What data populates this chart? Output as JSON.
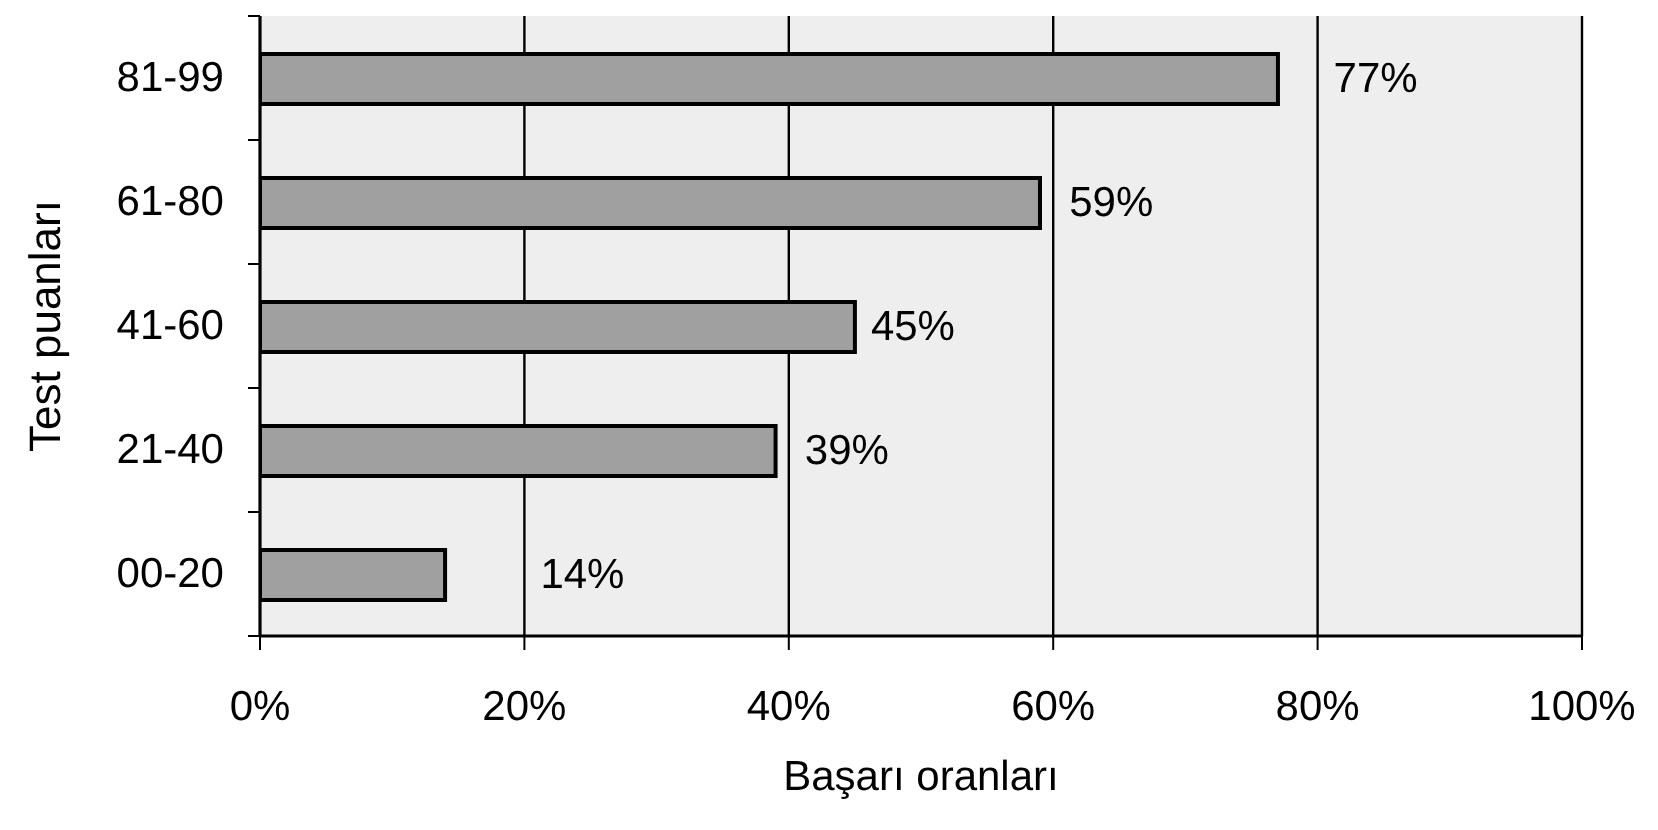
{
  "chart_data": {
    "type": "bar",
    "orientation": "horizontal",
    "xlabel": "Başarı oranları",
    "ylabel": "Test puanları",
    "categories": [
      "81-99",
      "61-80",
      "41-60",
      "21-40",
      "00-20"
    ],
    "values": [
      77,
      59,
      45,
      39,
      14
    ],
    "value_labels": [
      "77%",
      "59%",
      "45%",
      "39%",
      "14%"
    ],
    "color": "#a0a0a0",
    "xlim": [
      0,
      100
    ],
    "xticks": [
      {
        "value": 0,
        "label": "0%"
      },
      {
        "value": 20,
        "label": "20%"
      },
      {
        "value": 40,
        "label": "40%"
      },
      {
        "value": 60,
        "label": "60%"
      },
      {
        "value": 80,
        "label": "80%"
      },
      {
        "value": 100,
        "label": "100%"
      }
    ],
    "grid": "x"
  }
}
